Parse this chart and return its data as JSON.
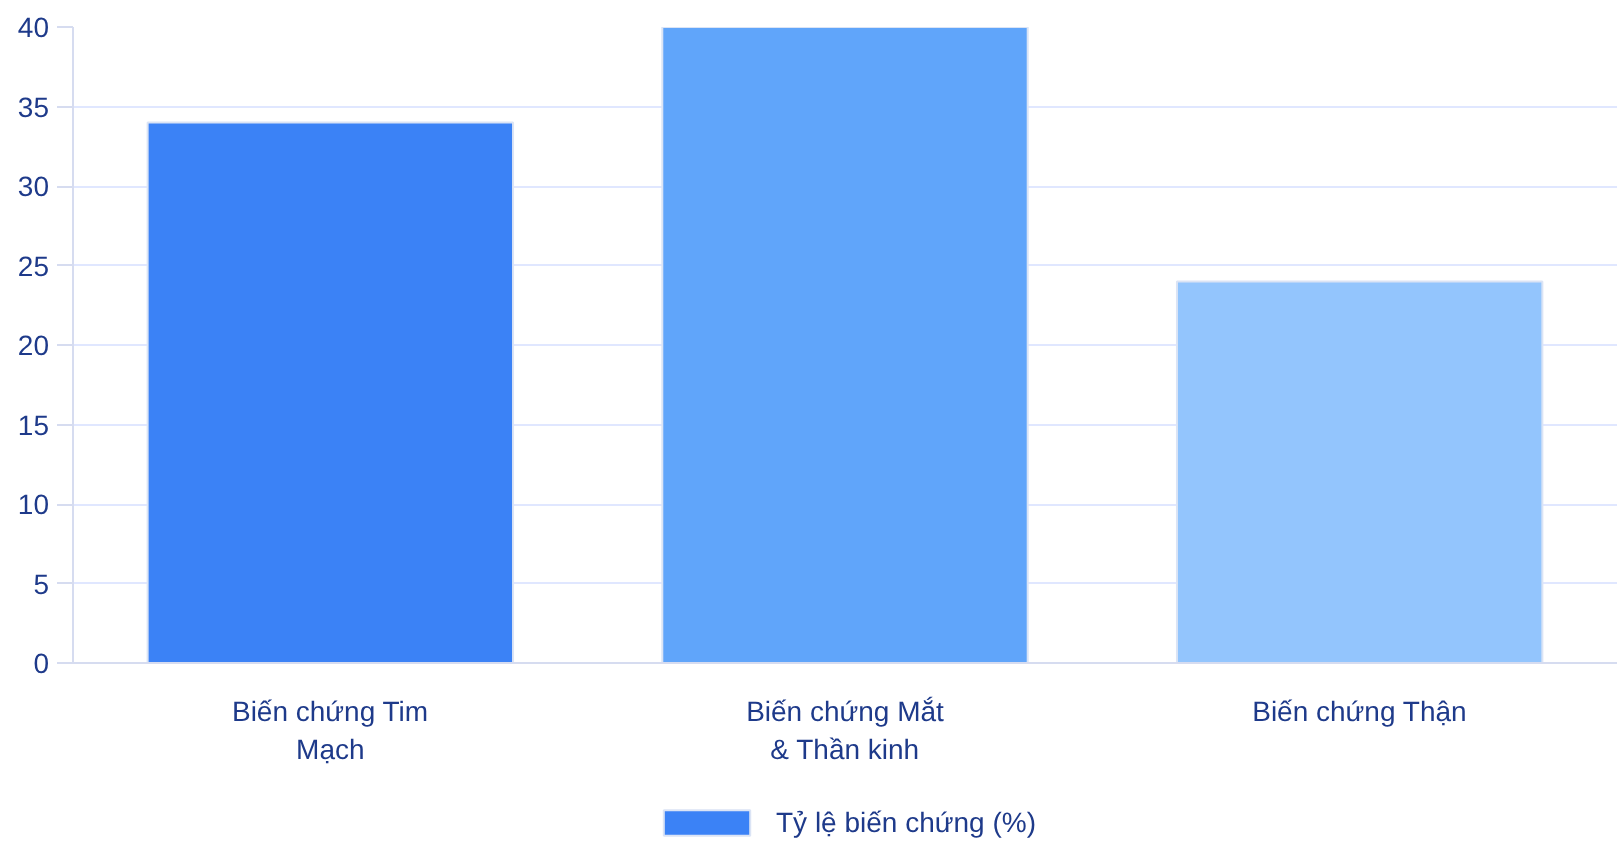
{
  "chart_data": {
    "type": "bar",
    "categories": [
      "Biến chứng Tim Mạch",
      "Biến chứng Mắt & Thần kinh",
      "Biến chứng Thận"
    ],
    "series": [
      {
        "name": "Tỷ lệ biến chứng (%)",
        "color": "#3b82f6",
        "colors": [
          "#3b82f6",
          "#60a5fa",
          "#93c5fd"
        ],
        "values": [
          34,
          40,
          24
        ]
      }
    ],
    "ylim": [
      0,
      40
    ],
    "yticks": [
      0,
      5,
      10,
      15,
      20,
      25,
      30,
      35,
      40
    ],
    "grid": "y",
    "legend": "bottom"
  }
}
